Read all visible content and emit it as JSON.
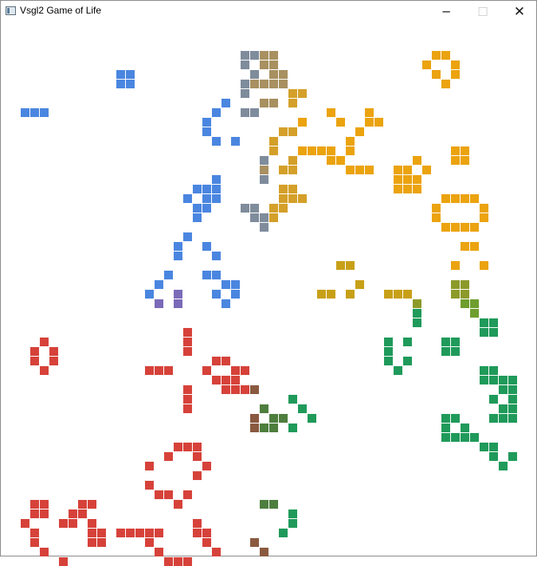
{
  "window": {
    "title": "Vsgl2 Game of Life",
    "controls": {
      "minimize": "─",
      "maximize": "☐",
      "close": "✕"
    }
  },
  "board": {
    "background": "#ffffff",
    "cell_pitch": 12,
    "palette": {
      "blue": "#4a86e0",
      "slate": "#7f8c9c",
      "tan": "#a89060",
      "gold": "#d4a02a",
      "orange": "#eba30f",
      "ochre": "#c8a018",
      "olive": "#8c9a2a",
      "lime": "#6e9e2e",
      "green": "#1f9a5a",
      "red": "#d6423a",
      "brown": "#8a5a40",
      "moss": "#4e7e3e",
      "purple": "#7a6ab8"
    },
    "groups": [
      {
        "color": "blue",
        "cells": [
          [
            12,
            5
          ],
          [
            13,
            5
          ],
          [
            12,
            6
          ],
          [
            13,
            6
          ],
          [
            2,
            9
          ],
          [
            3,
            9
          ],
          [
            4,
            9
          ],
          [
            23,
            8
          ],
          [
            22,
            9
          ],
          [
            21,
            10
          ],
          [
            21,
            11
          ],
          [
            22,
            12
          ],
          [
            24,
            12
          ],
          [
            22,
            16
          ],
          [
            20,
            17
          ],
          [
            21,
            17
          ],
          [
            22,
            17
          ],
          [
            19,
            18
          ],
          [
            21,
            18
          ],
          [
            22,
            18
          ],
          [
            20,
            19
          ],
          [
            21,
            19
          ],
          [
            20,
            20
          ],
          [
            19,
            22
          ],
          [
            18,
            23
          ],
          [
            21,
            23
          ],
          [
            18,
            24
          ],
          [
            22,
            24
          ],
          [
            17,
            26
          ],
          [
            21,
            26
          ],
          [
            22,
            26
          ],
          [
            16,
            27
          ],
          [
            23,
            27
          ],
          [
            24,
            27
          ],
          [
            15,
            28
          ],
          [
            22,
            28
          ],
          [
            24,
            28
          ],
          [
            23,
            29
          ]
        ]
      },
      {
        "color": "slate",
        "cells": [
          [
            25,
            3
          ],
          [
            26,
            3
          ],
          [
            25,
            4
          ],
          [
            26,
            5
          ],
          [
            25,
            6
          ],
          [
            25,
            7
          ],
          [
            25,
            9
          ],
          [
            26,
            9
          ],
          [
            27,
            14
          ],
          [
            27,
            16
          ],
          [
            25,
            19
          ],
          [
            26,
            19
          ],
          [
            26,
            20
          ],
          [
            27,
            20
          ],
          [
            27,
            21
          ]
        ]
      },
      {
        "color": "tan",
        "cells": [
          [
            27,
            3
          ],
          [
            28,
            3
          ],
          [
            27,
            4
          ],
          [
            28,
            4
          ],
          [
            28,
            5
          ],
          [
            29,
            5
          ],
          [
            26,
            6
          ],
          [
            27,
            6
          ],
          [
            28,
            6
          ],
          [
            29,
            6
          ],
          [
            27,
            8
          ],
          [
            28,
            8
          ],
          [
            27,
            15
          ]
        ]
      },
      {
        "color": "gold",
        "cells": [
          [
            30,
            7
          ],
          [
            31,
            7
          ],
          [
            30,
            8
          ],
          [
            29,
            11
          ],
          [
            30,
            11
          ],
          [
            28,
            12
          ],
          [
            28,
            13
          ],
          [
            30,
            14
          ],
          [
            29,
            15
          ],
          [
            30,
            15
          ],
          [
            29,
            17
          ],
          [
            30,
            17
          ],
          [
            29,
            18
          ],
          [
            30,
            18
          ],
          [
            31,
            18
          ],
          [
            28,
            19
          ],
          [
            29,
            19
          ],
          [
            28,
            20
          ]
        ]
      },
      {
        "color": "orange",
        "cells": [
          [
            45,
            3
          ],
          [
            46,
            3
          ],
          [
            44,
            4
          ],
          [
            47,
            4
          ],
          [
            45,
            5
          ],
          [
            47,
            5
          ],
          [
            46,
            6
          ],
          [
            34,
            9
          ],
          [
            38,
            9
          ],
          [
            35,
            10
          ],
          [
            38,
            10
          ],
          [
            39,
            10
          ],
          [
            37,
            11
          ],
          [
            31,
            10
          ],
          [
            31,
            13
          ],
          [
            32,
            13
          ],
          [
            33,
            13
          ],
          [
            34,
            13
          ],
          [
            36,
            12
          ],
          [
            36,
            13
          ],
          [
            34,
            14
          ],
          [
            35,
            14
          ],
          [
            36,
            15
          ],
          [
            37,
            15
          ],
          [
            38,
            15
          ],
          [
            41,
            15
          ],
          [
            43,
            14
          ],
          [
            42,
            15
          ],
          [
            44,
            15
          ],
          [
            41,
            16
          ],
          [
            42,
            16
          ],
          [
            43,
            16
          ],
          [
            41,
            17
          ],
          [
            42,
            17
          ],
          [
            43,
            17
          ],
          [
            47,
            13
          ],
          [
            48,
            13
          ],
          [
            47,
            14
          ],
          [
            48,
            14
          ],
          [
            46,
            18
          ],
          [
            47,
            18
          ],
          [
            48,
            18
          ],
          [
            49,
            18
          ],
          [
            45,
            19
          ],
          [
            50,
            19
          ],
          [
            45,
            20
          ],
          [
            50,
            20
          ],
          [
            46,
            21
          ],
          [
            47,
            21
          ],
          [
            48,
            21
          ],
          [
            49,
            21
          ],
          [
            48,
            23
          ],
          [
            49,
            23
          ],
          [
            47,
            25
          ],
          [
            50,
            25
          ]
        ]
      },
      {
        "color": "ochre",
        "cells": [
          [
            35,
            25
          ],
          [
            36,
            25
          ],
          [
            37,
            27
          ],
          [
            33,
            28
          ],
          [
            34,
            28
          ],
          [
            36,
            28
          ],
          [
            40,
            28
          ],
          [
            41,
            28
          ],
          [
            42,
            28
          ]
        ]
      },
      {
        "color": "olive",
        "cells": [
          [
            47,
            27
          ],
          [
            48,
            27
          ],
          [
            47,
            28
          ],
          [
            48,
            28
          ],
          [
            43,
            29
          ]
        ]
      },
      {
        "color": "lime",
        "cells": [
          [
            48,
            29
          ],
          [
            49,
            29
          ],
          [
            49,
            30
          ]
        ]
      },
      {
        "color": "green",
        "cells": [
          [
            43,
            30
          ],
          [
            43,
            31
          ],
          [
            50,
            31
          ],
          [
            51,
            31
          ],
          [
            50,
            32
          ],
          [
            51,
            32
          ],
          [
            40,
            33
          ],
          [
            42,
            33
          ],
          [
            46,
            33
          ],
          [
            47,
            33
          ],
          [
            40,
            34
          ],
          [
            46,
            34
          ],
          [
            47,
            34
          ],
          [
            40,
            35
          ],
          [
            42,
            35
          ],
          [
            41,
            36
          ],
          [
            50,
            36
          ],
          [
            51,
            36
          ],
          [
            50,
            37
          ],
          [
            51,
            37
          ],
          [
            52,
            37
          ],
          [
            53,
            37
          ],
          [
            52,
            38
          ],
          [
            53,
            38
          ],
          [
            51,
            39
          ],
          [
            53,
            39
          ],
          [
            52,
            40
          ],
          [
            53,
            40
          ],
          [
            51,
            41
          ],
          [
            52,
            41
          ],
          [
            53,
            41
          ],
          [
            46,
            41
          ],
          [
            47,
            41
          ],
          [
            46,
            42
          ],
          [
            48,
            42
          ],
          [
            46,
            43
          ],
          [
            47,
            43
          ],
          [
            48,
            43
          ],
          [
            49,
            43
          ],
          [
            50,
            44
          ],
          [
            51,
            44
          ],
          [
            51,
            45
          ],
          [
            53,
            45
          ],
          [
            52,
            46
          ],
          [
            30,
            39
          ],
          [
            31,
            40
          ],
          [
            32,
            41
          ],
          [
            30,
            42
          ],
          [
            30,
            51
          ],
          [
            30,
            52
          ],
          [
            29,
            53
          ]
        ]
      },
      {
        "color": "moss",
        "cells": [
          [
            27,
            40
          ],
          [
            28,
            41
          ],
          [
            29,
            41
          ],
          [
            27,
            42
          ],
          [
            28,
            42
          ],
          [
            27,
            50
          ],
          [
            28,
            50
          ]
        ]
      },
      {
        "color": "brown",
        "cells": [
          [
            26,
            38
          ],
          [
            26,
            41
          ],
          [
            26,
            42
          ],
          [
            26,
            54
          ],
          [
            27,
            55
          ]
        ]
      },
      {
        "color": "red",
        "cells": [
          [
            4,
            33
          ],
          [
            3,
            34
          ],
          [
            5,
            34
          ],
          [
            3,
            35
          ],
          [
            5,
            35
          ],
          [
            4,
            36
          ],
          [
            19,
            32
          ],
          [
            19,
            33
          ],
          [
            19,
            34
          ],
          [
            15,
            36
          ],
          [
            16,
            36
          ],
          [
            17,
            36
          ],
          [
            22,
            35
          ],
          [
            23,
            35
          ],
          [
            21,
            36
          ],
          [
            24,
            36
          ],
          [
            25,
            36
          ],
          [
            22,
            37
          ],
          [
            23,
            37
          ],
          [
            24,
            37
          ],
          [
            23,
            38
          ],
          [
            24,
            38
          ],
          [
            25,
            38
          ],
          [
            19,
            38
          ],
          [
            19,
            39
          ],
          [
            19,
            40
          ],
          [
            18,
            44
          ],
          [
            19,
            44
          ],
          [
            20,
            44
          ],
          [
            17,
            45
          ],
          [
            20,
            45
          ],
          [
            21,
            46
          ],
          [
            15,
            46
          ],
          [
            20,
            47
          ],
          [
            15,
            48
          ],
          [
            16,
            49
          ],
          [
            17,
            49
          ],
          [
            19,
            49
          ],
          [
            18,
            50
          ],
          [
            3,
            50
          ],
          [
            4,
            50
          ],
          [
            8,
            50
          ],
          [
            9,
            50
          ],
          [
            3,
            51
          ],
          [
            4,
            51
          ],
          [
            7,
            51
          ],
          [
            8,
            51
          ],
          [
            2,
            52
          ],
          [
            6,
            52
          ],
          [
            7,
            52
          ],
          [
            9,
            52
          ],
          [
            9,
            53
          ],
          [
            10,
            53
          ],
          [
            3,
            53
          ],
          [
            3,
            54
          ],
          [
            9,
            54
          ],
          [
            10,
            54
          ],
          [
            4,
            55
          ],
          [
            6,
            56
          ],
          [
            12,
            53
          ],
          [
            13,
            53
          ],
          [
            14,
            53
          ],
          [
            15,
            53
          ],
          [
            16,
            53
          ],
          [
            15,
            54
          ],
          [
            16,
            55
          ],
          [
            17,
            56
          ],
          [
            18,
            56
          ],
          [
            19,
            56
          ],
          [
            20,
            53
          ],
          [
            21,
            53
          ],
          [
            20,
            52
          ],
          [
            21,
            54
          ],
          [
            22,
            55
          ]
        ]
      },
      {
        "color": "purple",
        "cells": [
          [
            16,
            29
          ],
          [
            18,
            29
          ],
          [
            18,
            28
          ]
        ]
      }
    ]
  }
}
